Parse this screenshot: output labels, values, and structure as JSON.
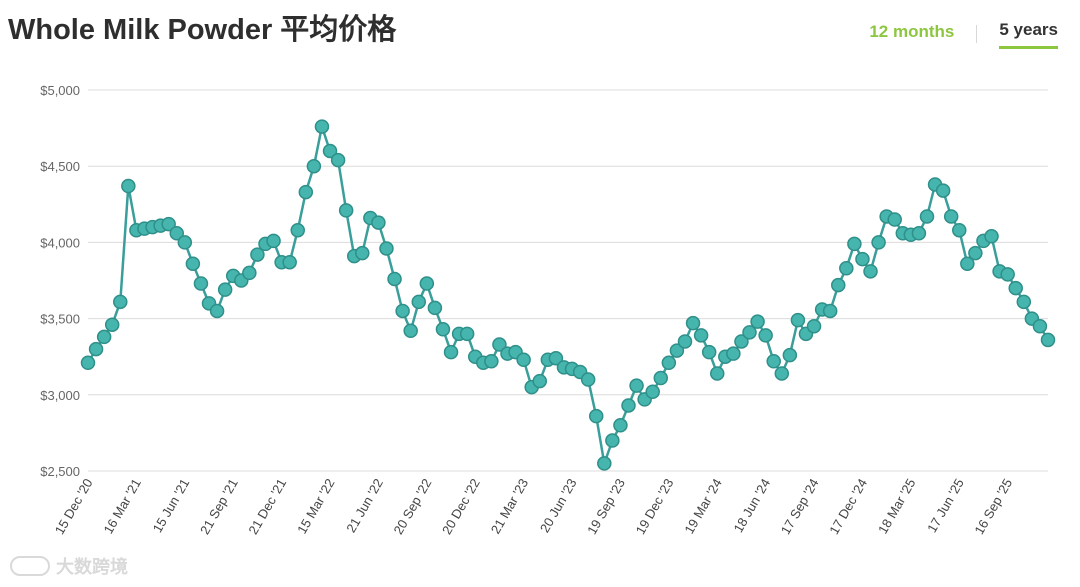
{
  "header": {
    "title": "Whole Milk Powder 平均价格",
    "tabs": [
      {
        "label": "12 months",
        "active": false
      },
      {
        "label": "5 years",
        "active": true
      }
    ]
  },
  "colors": {
    "line": "#3a9e9a",
    "marker_fill": "#45b5ae",
    "marker_stroke": "#2f8f89",
    "accent": "#8dc63f"
  },
  "watermark": {
    "text": "大数跨境"
  },
  "chart_data": {
    "type": "line",
    "title": "Whole Milk Powder 平均价格",
    "xlabel": "",
    "ylabel": "",
    "ylim": [
      2500,
      5000
    ],
    "yticks": [
      2500,
      3000,
      3500,
      4000,
      4500,
      5000
    ],
    "ytick_labels": [
      "$2,500",
      "$3,000",
      "$3,500",
      "$4,000",
      "$4,500",
      "$5,000"
    ],
    "grid": true,
    "xtick_labels": [
      "15 Dec '20",
      "16 Mar '21",
      "15 Jun '21",
      "21 Sep '21",
      "21 Dec '21",
      "15 Mar '22",
      "21 Jun '22",
      "20 Sep '22",
      "20 Dec '22",
      "21 Mar '23",
      "20 Jun '23",
      "19 Sep '23",
      "19 Dec '23",
      "19 Mar '24",
      "18 Jun '24",
      "17 Sep '24",
      "17 Dec '24",
      "18 Mar '25",
      "17 Jun '25",
      "16 Sep '25"
    ],
    "xtick_index": [
      0,
      6,
      12,
      18,
      24,
      30,
      36,
      42,
      48,
      54,
      60,
      66,
      72,
      78,
      84,
      90,
      96,
      102,
      108,
      114
    ],
    "series": [
      {
        "values": [
          3210,
          3300,
          3380,
          3460,
          3610,
          4370,
          4080,
          4090,
          4100,
          4110,
          4120,
          4060,
          4000,
          3860,
          3730,
          3600,
          3550,
          3690,
          3780,
          3750,
          3800,
          3920,
          3990,
          4010,
          3870,
          3870,
          4080,
          4330,
          4500,
          4760,
          4600,
          4540,
          4210,
          3910,
          3930,
          4160,
          4130,
          3960,
          3760,
          3550,
          3420,
          3610,
          3730,
          3570,
          3430,
          3280,
          3400,
          3400,
          3250,
          3210,
          3220,
          3330,
          3270,
          3280,
          3230,
          3050,
          3090,
          3230,
          3240,
          3180,
          3170,
          3150,
          3100,
          2860,
          2550,
          2700,
          2800,
          2930,
          3060,
          2970,
          3020,
          3110,
          3210,
          3290,
          3350,
          3470,
          3390,
          3280,
          3140,
          3250,
          3270,
          3350,
          3410,
          3480,
          3390,
          3220,
          3140,
          3260,
          3490,
          3400,
          3450,
          3560,
          3550,
          3720,
          3830,
          3990,
          3890,
          3810,
          4000,
          4170,
          4150,
          4060,
          4050,
          4060,
          4170,
          4380,
          4340,
          4170,
          4080,
          3860,
          3930,
          4010,
          4040,
          3810,
          3790,
          3700,
          3610,
          3500,
          3450,
          3360
        ]
      }
    ]
  }
}
